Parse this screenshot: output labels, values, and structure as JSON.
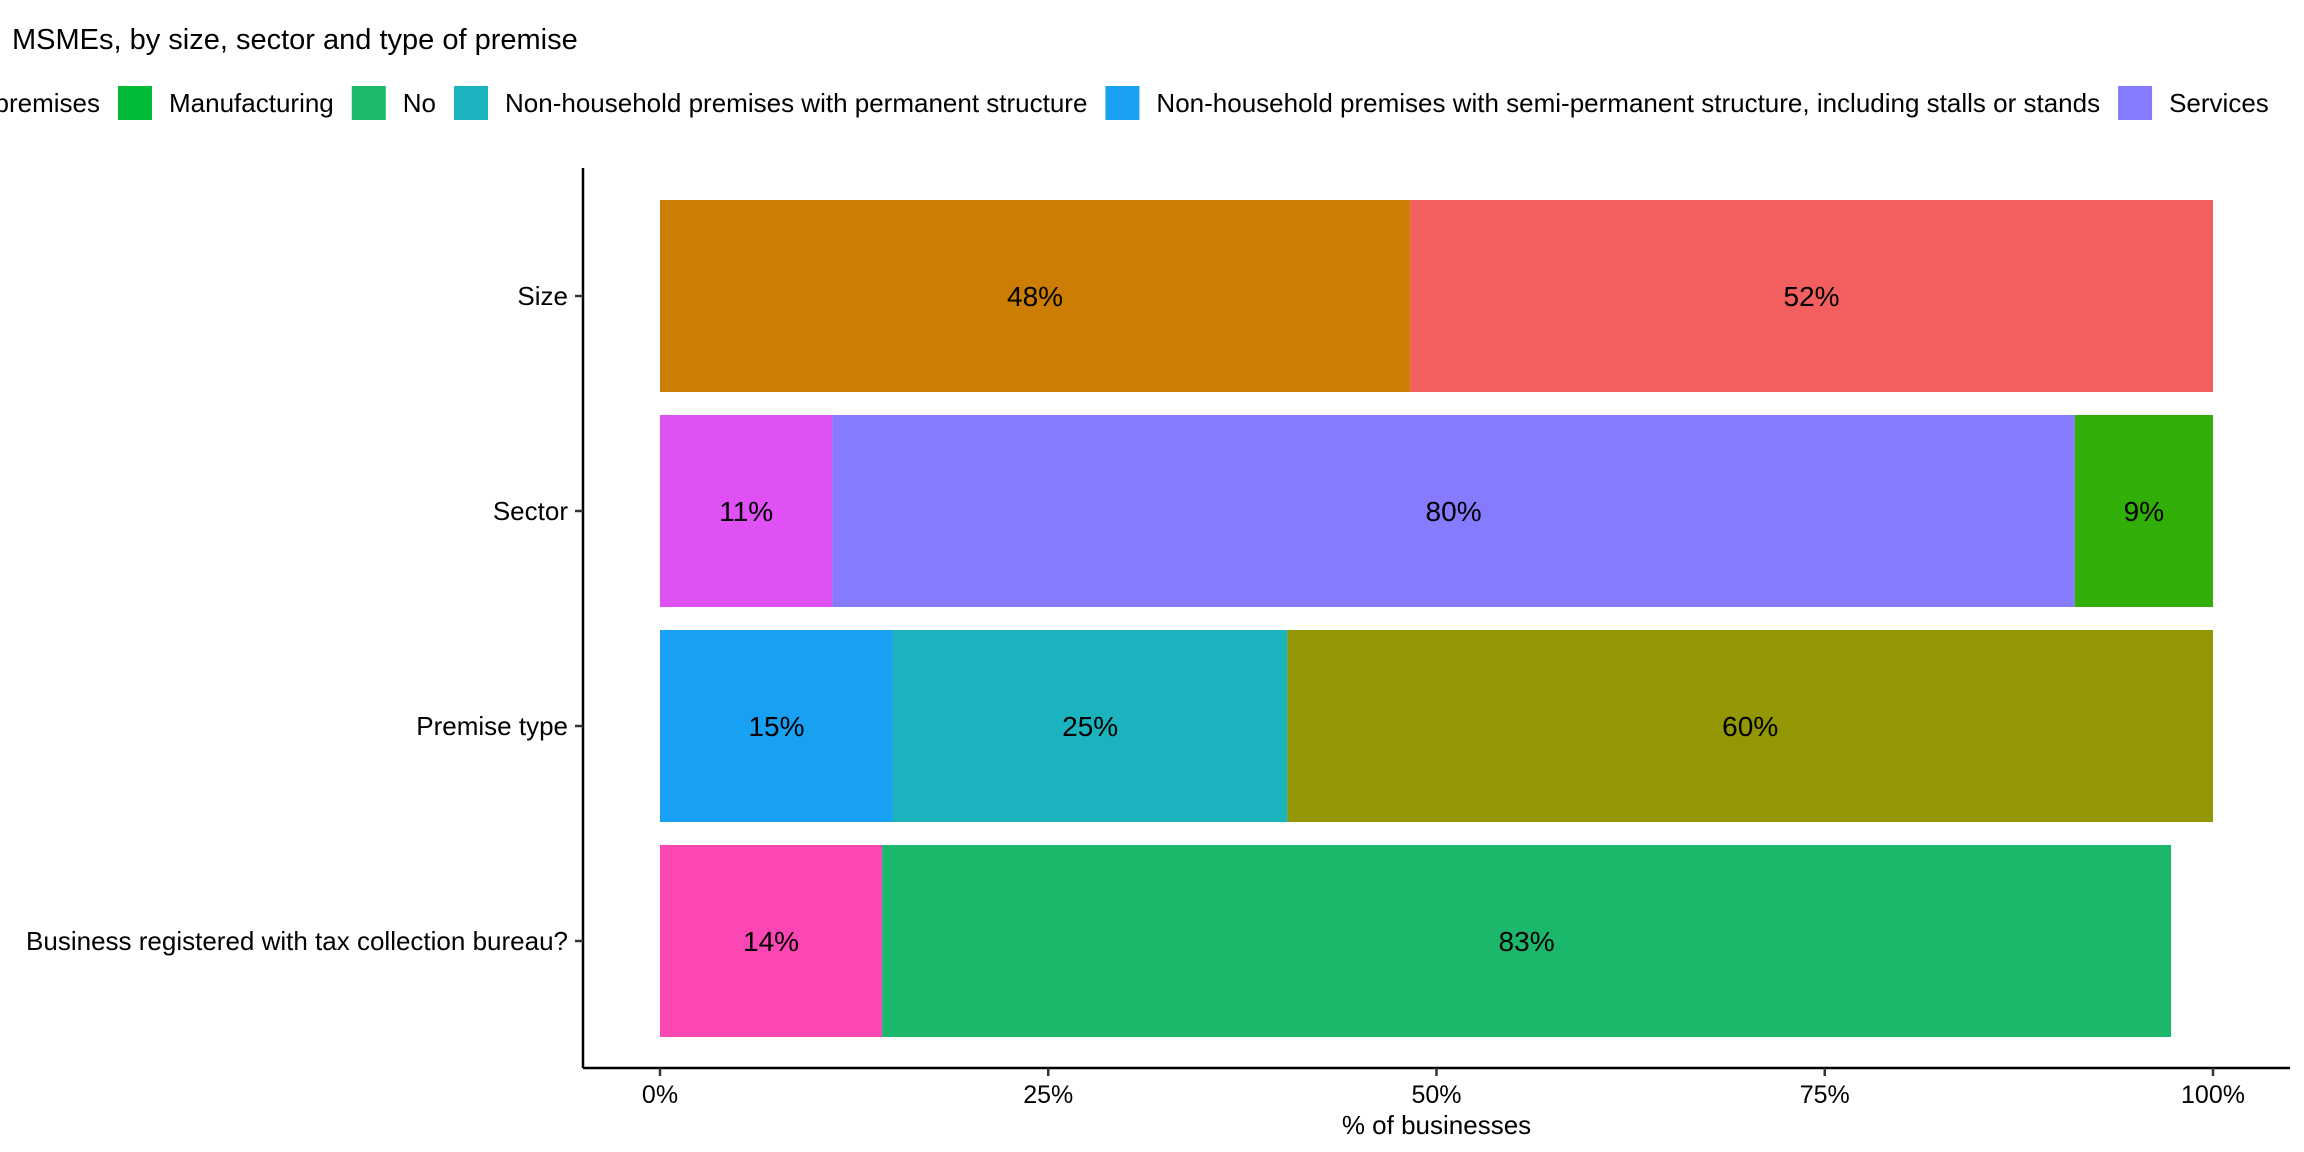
{
  "chart_data": {
    "type": "bar",
    "orientation": "horizontal",
    "stacked": true,
    "title": "MSMEs, by size, sector and type of premise",
    "xlabel": "% of businesses",
    "ylabel": "",
    "xlim": [
      0,
      100
    ],
    "x_ticks": [
      "0%",
      "25%",
      "50%",
      "75%",
      "100%"
    ],
    "x_tick_values": [
      0,
      25,
      50,
      75,
      100
    ],
    "grid": false,
    "legend_position": "top",
    "legend": [
      {
        "label": "Household premises",
        "visible_text": "premises",
        "color": "#93AA00"
      },
      {
        "label": "Manufacturing",
        "visible_text": "Manufacturing",
        "color": "#00BA38"
      },
      {
        "label": "No",
        "visible_text": "No",
        "color": "#1BB96A"
      },
      {
        "label": "Non-household premises with permanent structure",
        "visible_text": "Non-household premises with permanent structure",
        "color": "#1BB3BD"
      },
      {
        "label": "Non-household premises with semi-permanent structure, including stalls or stands",
        "visible_text": "Non-household premises with semi-permanent structure, including stalls or stands",
        "color": "#18A0F2"
      },
      {
        "label": "Services",
        "visible_text": "Services",
        "color": "#857BFF"
      }
    ],
    "categories": [
      "Size",
      "Sector",
      "Premise type",
      "Business registered with tax collection bureau?"
    ],
    "bars": [
      {
        "category": "Size",
        "segments": [
          {
            "value": 48.3,
            "label": "48%",
            "color": "#CC7D04"
          },
          {
            "value": 51.7,
            "label": "52%",
            "color": "#F35F5E"
          }
        ]
      },
      {
        "category": "Sector",
        "segments": [
          {
            "value": 11.1,
            "label": "11%",
            "color": "#DF50F5"
          },
          {
            "value": 80.0,
            "label": "80%",
            "color": "#857BFF"
          },
          {
            "value": 8.9,
            "label": "9%",
            "color": "#31AF08"
          }
        ]
      },
      {
        "category": "Premise type",
        "segments": [
          {
            "value": 15.0,
            "label": "15%",
            "color": "#18A0F2"
          },
          {
            "value": 25.4,
            "label": "25%",
            "color": "#1BB3BD"
          },
          {
            "value": 59.6,
            "label": "60%",
            "color": "#939703"
          }
        ]
      },
      {
        "category": "Business registered with tax collection bureau?",
        "segments": [
          {
            "value": 14.3,
            "label": "14%",
            "color": "#FB46B3"
          },
          {
            "value": 83.0,
            "label": "83%",
            "color": "#1BB76B"
          }
        ]
      }
    ]
  }
}
